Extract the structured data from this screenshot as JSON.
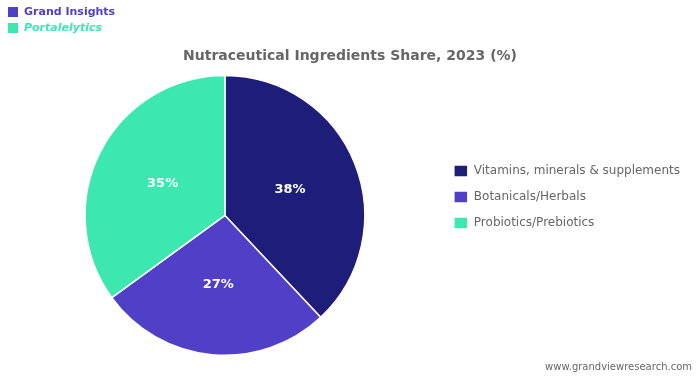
{
  "chart_data": {
    "type": "pie",
    "title": "Nutraceutical Ingredients Share, 2023 (%)",
    "categories": [
      "Vitamins, minerals & supplements",
      "Botanicals/Herbals",
      "Probiotics/Prebiotics"
    ],
    "values": [
      38,
      27,
      35
    ],
    "value_labels": [
      "38%",
      "27%",
      "35%"
    ],
    "data_labels": true,
    "colors": [
      "#1e1e7a",
      "#5040c8",
      "#3de8b0"
    ],
    "legend": "right",
    "annotations": [
      "Grand Insights",
      "Portalelytics",
      "www.grandviewresearch.com"
    ]
  }
}
